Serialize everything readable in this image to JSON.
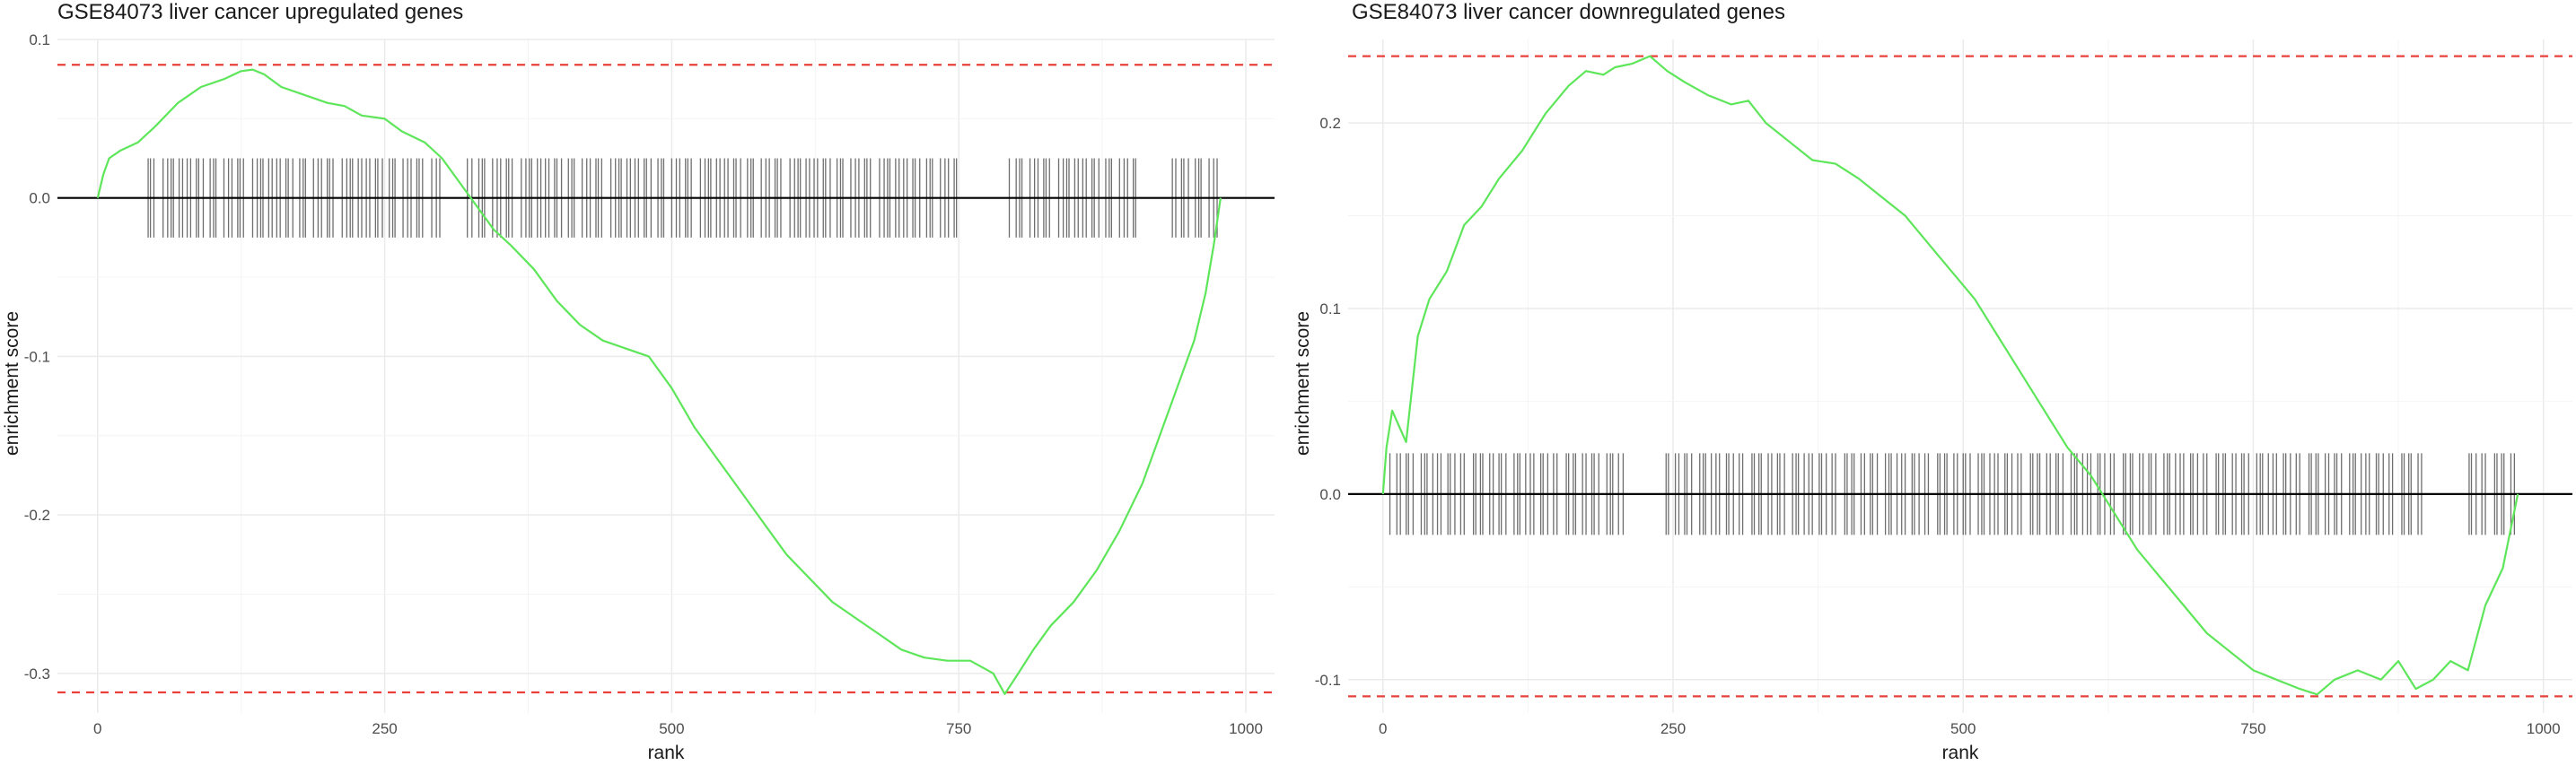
{
  "chart_data": [
    {
      "type": "line",
      "title": "GSE84073 liver cancer upregulated genes",
      "xlabel": "rank",
      "ylabel": "enrichment score",
      "xlim": [
        -35,
        1025
      ],
      "ylim": [
        -0.325,
        0.1
      ],
      "xticks": [
        0,
        250,
        500,
        750,
        1000
      ],
      "xtick_labels": [
        "0",
        "250",
        "500",
        "750",
        "1000"
      ],
      "yticks": [
        0.1,
        0.0,
        -0.1,
        -0.2,
        -0.3
      ],
      "ytick_labels": [
        "0.1",
        "0.0",
        "-0.1",
        "-0.2",
        "-0.3"
      ],
      "grid": true,
      "max_line": 0.084,
      "min_line": -0.312,
      "rug_half_height": 0.025,
      "gene_count": 978,
      "curve_color": "#5ee65a",
      "threshold_color": "#e8413b",
      "rug_color": "#555555",
      "rug_spacing_pattern": [
        3,
        5,
        2,
        4,
        6,
        3,
        2,
        7,
        4,
        3,
        5,
        2,
        3,
        8,
        4,
        3,
        2,
        5,
        3,
        4
      ],
      "rug_gaps": [
        [
          0,
          40
        ],
        [
          300,
          320
        ],
        [
          750,
          790
        ],
        [
          905,
          935
        ]
      ],
      "x": [
        0,
        5,
        10,
        20,
        35,
        50,
        70,
        90,
        110,
        125,
        135,
        145,
        160,
        180,
        200,
        215,
        230,
        250,
        265,
        285,
        300,
        315,
        330,
        345,
        360,
        380,
        400,
        420,
        440,
        460,
        480,
        500,
        520,
        540,
        560,
        580,
        600,
        620,
        640,
        660,
        680,
        700,
        720,
        740,
        760,
        780,
        790,
        800,
        815,
        830,
        850,
        870,
        890,
        910,
        925,
        940,
        955,
        965,
        972,
        978
      ],
      "y": [
        0.0,
        0.015,
        0.025,
        0.03,
        0.035,
        0.045,
        0.06,
        0.07,
        0.075,
        0.08,
        0.081,
        0.078,
        0.07,
        0.065,
        0.06,
        0.058,
        0.052,
        0.05,
        0.042,
        0.035,
        0.025,
        0.01,
        -0.005,
        -0.02,
        -0.03,
        -0.045,
        -0.065,
        -0.08,
        -0.09,
        -0.095,
        -0.1,
        -0.12,
        -0.145,
        -0.165,
        -0.185,
        -0.205,
        -0.225,
        -0.24,
        -0.255,
        -0.265,
        -0.275,
        -0.285,
        -0.29,
        -0.292,
        -0.292,
        -0.3,
        -0.313,
        -0.302,
        -0.285,
        -0.27,
        -0.255,
        -0.235,
        -0.21,
        -0.18,
        -0.15,
        -0.12,
        -0.09,
        -0.06,
        -0.03,
        0.0
      ]
    },
    {
      "type": "line",
      "title": "GSE84073 liver cancer downregulated genes",
      "xlabel": "rank",
      "ylabel": "enrichment score",
      "xlim": [
        -30,
        1025
      ],
      "ylim": [
        -0.118,
        0.245
      ],
      "xticks": [
        0,
        250,
        500,
        750,
        1000
      ],
      "xtick_labels": [
        "0",
        "250",
        "500",
        "750",
        "1000"
      ],
      "yticks": [
        0.2,
        0.1,
        0.0,
        -0.1
      ],
      "ytick_labels": [
        "0.2",
        "0.1",
        "0.0",
        "-0.1"
      ],
      "grid": true,
      "max_line": 0.236,
      "min_line": -0.109,
      "rug_half_height": 0.022,
      "gene_count": 978,
      "curve_color": "#5ee65a",
      "threshold_color": "#e8413b",
      "rug_color": "#555555",
      "rug_spacing_pattern": [
        4,
        2,
        6,
        3,
        5,
        2,
        4,
        7,
        3,
        2,
        5,
        4,
        3,
        6,
        2,
        4,
        5,
        3,
        8,
        2
      ],
      "rug_gaps": [
        [
          0,
          5
        ],
        [
          210,
          240
        ],
        [
          900,
          930
        ]
      ],
      "x": [
        0,
        3,
        8,
        15,
        20,
        30,
        40,
        55,
        70,
        85,
        100,
        120,
        140,
        160,
        175,
        190,
        200,
        215,
        230,
        245,
        260,
        280,
        300,
        315,
        330,
        350,
        370,
        390,
        410,
        430,
        450,
        470,
        490,
        510,
        530,
        550,
        570,
        590,
        610,
        630,
        650,
        670,
        690,
        710,
        730,
        750,
        770,
        790,
        805,
        820,
        840,
        860,
        875,
        890,
        905,
        920,
        935,
        950,
        965,
        978
      ],
      "y": [
        0.0,
        0.025,
        0.045,
        0.035,
        0.028,
        0.085,
        0.105,
        0.12,
        0.145,
        0.155,
        0.17,
        0.185,
        0.205,
        0.22,
        0.228,
        0.226,
        0.23,
        0.232,
        0.236,
        0.228,
        0.222,
        0.215,
        0.21,
        0.212,
        0.2,
        0.19,
        0.18,
        0.178,
        0.17,
        0.16,
        0.15,
        0.135,
        0.12,
        0.105,
        0.085,
        0.065,
        0.045,
        0.025,
        0.01,
        -0.01,
        -0.03,
        -0.045,
        -0.06,
        -0.075,
        -0.085,
        -0.095,
        -0.1,
        -0.105,
        -0.108,
        -0.1,
        -0.095,
        -0.1,
        -0.09,
        -0.105,
        -0.1,
        -0.09,
        -0.095,
        -0.06,
        -0.04,
        0.0
      ]
    }
  ]
}
